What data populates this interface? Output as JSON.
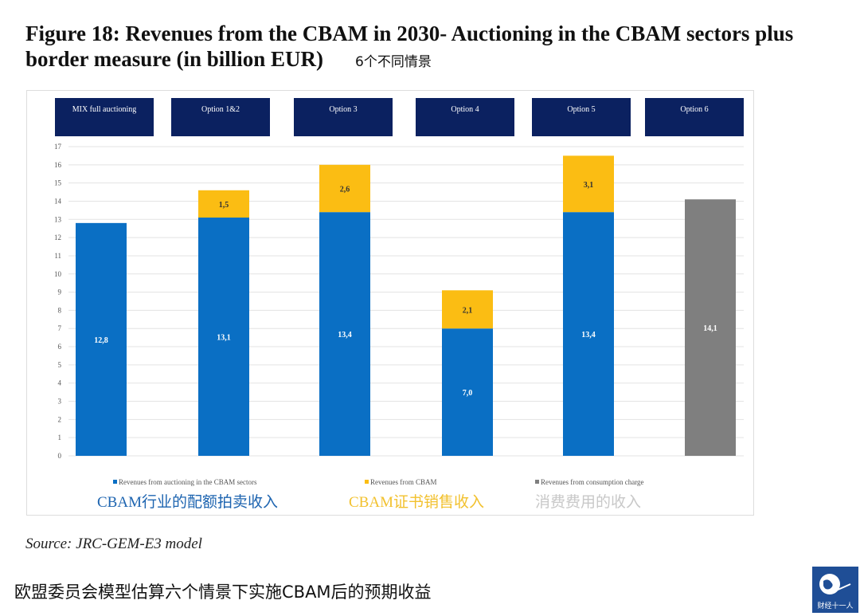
{
  "title": "Figure 18: Revenues from the CBAM in 2030- Auctioning in the CBAM sectors plus border measure (in billion EUR)",
  "subtitle_cn": "6个不同情景",
  "source": "Source: JRC-GEM-E3 model",
  "caption": "欧盟委员会模型估算六个情景下实施CBAM后的预期收益",
  "logo_text": "财经十一人",
  "chart_data": {
    "type": "bar",
    "stacked": true,
    "categories": [
      "MIX full auctioning",
      "Option 1&2",
      "Option 3",
      "Option 4",
      "Option 5",
      "Option 6"
    ],
    "series": [
      {
        "name": "Revenues from auctioning in the CBAM sectors",
        "name_cn": "CBAM行业的配额拍卖收入",
        "color": "#0a6fc4",
        "values": [
          12.8,
          13.1,
          13.4,
          7.0,
          13.4,
          null
        ],
        "labels": [
          "12,8",
          "13,1",
          "13,4",
          "7,0",
          "13,4",
          ""
        ]
      },
      {
        "name": "Revenues from CBAM",
        "name_cn": "CBAM证书销售收入",
        "color": "#fbbd13",
        "values": [
          null,
          1.5,
          2.6,
          2.1,
          3.1,
          null
        ],
        "labels": [
          "",
          "1,5",
          "2,6",
          "2,1",
          "3,1",
          ""
        ]
      },
      {
        "name": "Revenues from consumption charge",
        "name_cn": "消费费用的收入",
        "color": "#7f7f7f",
        "values": [
          null,
          null,
          null,
          null,
          null,
          14.1
        ],
        "labels": [
          "",
          "",
          "",
          "",
          "",
          "14,1"
        ]
      }
    ],
    "ylim": [
      0,
      17
    ],
    "yticks": [
      0,
      1,
      2,
      3,
      4,
      5,
      6,
      7,
      8,
      9,
      10,
      11,
      12,
      13,
      14,
      15,
      16,
      17
    ],
    "grid": true,
    "legend": "bottom",
    "header_color": "#0b2160"
  }
}
